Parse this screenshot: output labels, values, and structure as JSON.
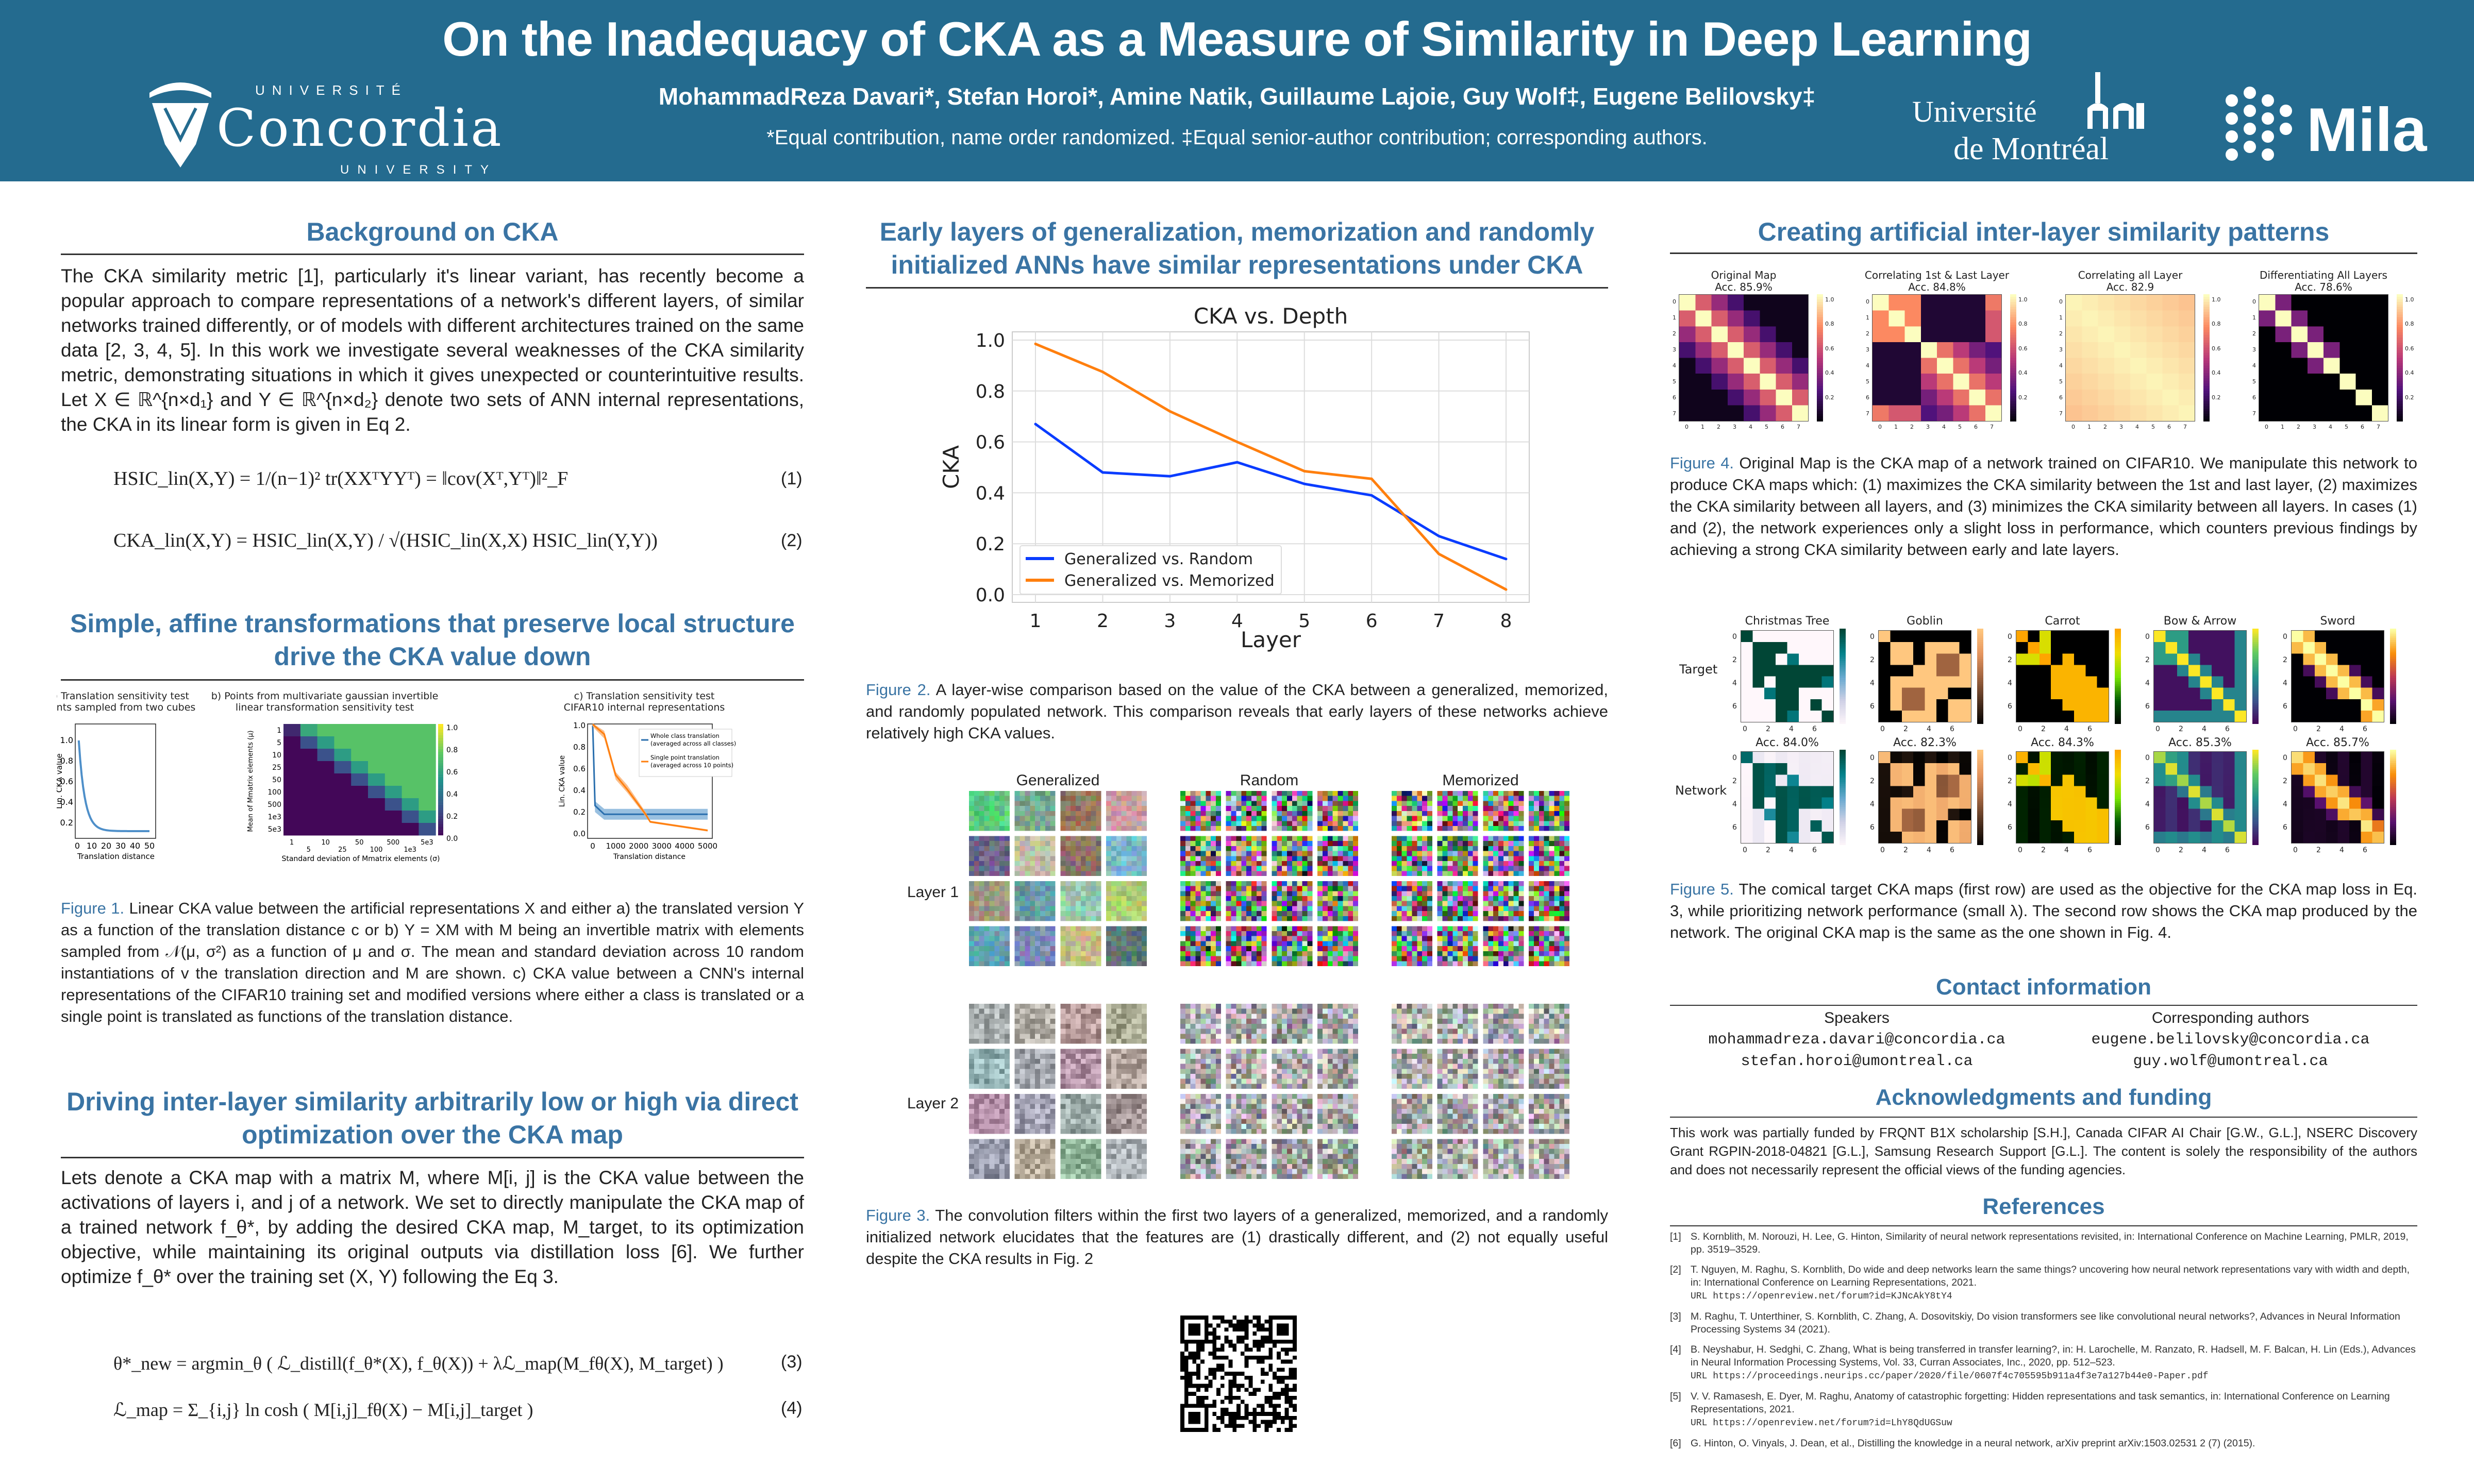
{
  "header": {
    "title": "On the Inadequacy of CKA as a Measure of Similarity in Deep Learning",
    "authors": "MohammadReza Davari*, Stefan Horoi*, Amine Natik, Guillaume Lajoie, Guy Wolf‡, Eugene Belilovsky‡",
    "affiliation_note": "*Equal contribution, name order randomized. ‡Equal senior-author contribution; corresponding authors.",
    "logos": {
      "concordia": {
        "top": "UNIVERSITÉ",
        "name": "Concordia",
        "bottom": "UNIVERSITY"
      },
      "udem": {
        "line1": "Université",
        "line2": "de Montréal"
      },
      "mila": "Mila"
    },
    "colors": {
      "banner": "#246b8f",
      "heading": "#3a74a4"
    }
  },
  "background": {
    "heading": "Background on CKA",
    "text": "The CKA similarity metric [1], particularly it's linear variant, has recently become a popular approach to compare representations of a network's different layers, of similar networks trained differently, or of models with different architectures trained on the same data [2, 3, 4, 5]. In this work we investigate several weaknesses of the CKA similarity metric, demonstrating situations in which it gives unexpected or counterintuitive results. Let X ∈ ℝ^{n×d₁} and Y ∈ ℝ^{n×d₂} denote two sets of ANN internal representations, the CKA in its linear form is given in Eq 2.",
    "eq1": "HSIC_lin(X,Y) = 1/(n−1)² tr(XXᵀYYᵀ) = ‖cov(Xᵀ,Yᵀ)‖²_F",
    "eq1_num": "(1)",
    "eq2": "CKA_lin(X,Y) = HSIC_lin(X,Y) / √(HSIC_lin(X,X) HSIC_lin(Y,Y))",
    "eq2_num": "(2)"
  },
  "affine": {
    "heading": "Simple, affine transformations that preserve local structure drive the CKA value down",
    "fig_a": {
      "title": "a) Translation sensitivity test\npoints sampled from two cubes",
      "ylabel": "Lin. CKA value",
      "xlabel": "Translation distance",
      "xticks": [
        "0",
        "10",
        "20",
        "30",
        "40",
        "50"
      ],
      "yticks": [
        "0.2",
        "0.4",
        "0.6",
        "0.8",
        "1.0"
      ]
    },
    "fig_b": {
      "title": "b) Points from multivariate gaussian invertible\nlinear transformation sensitivity test",
      "ylabel": "Mean of Mmatrix elements (μ)",
      "xlabel": "Standard deviation of Mmatrix elements (σ)",
      "ticks": [
        "1",
        "5",
        "10",
        "25",
        "50",
        "100",
        "500",
        "1e3",
        "5e3"
      ],
      "cbar": [
        "0.0",
        "0.2",
        "0.4",
        "0.6",
        "0.8",
        "1.0"
      ]
    },
    "fig_c": {
      "title": "c) Translation sensitivity test\nCIFAR10 internal representations",
      "ylabel": "Lin. CKA value",
      "xlabel": "Translation distance",
      "xticks": [
        "0",
        "1000",
        "2000",
        "3000",
        "4000",
        "5000"
      ],
      "yticks": [
        "0.0",
        "0.2",
        "0.4",
        "0.6",
        "0.8",
        "1.0"
      ],
      "legend": [
        "Whole class translation\n(averaged across all classes)",
        "Single point translation\n(averaged across 10 points)"
      ]
    },
    "caption_label": "Figure 1.",
    "caption": " Linear CKA value between the artificial representations X and either a) the translated version Y as a function of the translation distance c or b) Y = XM with M being an invertible matrix with elements sampled from 𝒩(μ, σ²) as a function of μ and σ. The mean and standard deviation across 10 random instantiations of v the translation direction and M are shown. c) CKA value between a CNN's internal representations of the CIFAR10 training set and modified versions where either a class is translated or a single point is translated as functions of the translation distance."
  },
  "driving": {
    "heading": "Driving inter-layer similarity arbitrarily low or high via direct optimization over the CKA map",
    "text": "Lets denote a CKA map with a matrix M, where M[i, j] is the CKA value between the activations of layers i, and j of a network. We set to directly manipulate the CKA map of a trained network f_θ*, by adding the desired CKA map, M_target, to its optimization objective, while maintaining its original outputs via distillation loss [6]. We further optimize f_θ* over the training set (X, Y) following the Eq 3.",
    "eq3": "θ*_new = argmin_θ ( ℒ_distill(f_θ*(X), f_θ(X)) + λℒ_map(M_fθ(X), M_target) )",
    "eq3_num": "(3)",
    "eq4": "ℒ_map = Σ_{i,j} ln cosh ( M[i,j]_fθ(X) − M[i,j]_target )",
    "eq4_num": "(4)"
  },
  "early": {
    "heading": "Early layers of generalization, memorization and randomly initialized ANNs have similar representations under CKA",
    "caption2_label": "Figure 2.",
    "caption2": " A layer-wise comparison based on the value of the CKA between a generalized, memorized, and randomly populated network. This comparison reveals that early layers of these networks achieve relatively high CKA values.",
    "filters": {
      "columns": [
        "Generalized",
        "Random",
        "Memorized"
      ],
      "rows": [
        "Layer 1",
        "Layer 2"
      ]
    },
    "caption3_label": "Figure 3.",
    "caption3": " The convolution filters within the first two layers of a generalized, memorized, and a randomly initialized network elucidates that the features are (1) drastically different, and (2) not equally useful despite the CKA results in Fig. 2"
  },
  "chart_data": {
    "type": "line",
    "title": "CKA vs. Depth",
    "xlabel": "Layer",
    "ylabel": "CKA",
    "x": [
      1,
      2,
      3,
      4,
      5,
      6,
      7,
      8
    ],
    "xticks": [
      "1",
      "2",
      "3",
      "4",
      "5",
      "6",
      "7",
      "8"
    ],
    "yticks": [
      "0.0",
      "0.2",
      "0.4",
      "0.6",
      "0.8",
      "1.0"
    ],
    "ylim": [
      -0.02,
      1.05
    ],
    "grid": true,
    "legend": "bottom-left",
    "series": [
      {
        "name": "Generalized vs. Random",
        "color": "#0a3cff",
        "values": [
          0.67,
          0.48,
          0.465,
          0.52,
          0.435,
          0.39,
          0.23,
          0.14
        ]
      },
      {
        "name": "Generalized vs. Memorized",
        "color": "#ff7f0e",
        "values": [
          0.985,
          0.875,
          0.72,
          0.6,
          0.485,
          0.455,
          0.16,
          0.02
        ]
      }
    ]
  },
  "patterns": {
    "heading": "Creating artificial inter-layer similarity patterns",
    "fig4": [
      {
        "title": "Original Map",
        "acc": "Acc. 85.9%"
      },
      {
        "title": "Correlating 1st & Last Layer",
        "acc": "Acc. 84.8%"
      },
      {
        "title": "Correlating all Layer",
        "acc": "Acc. 82.9"
      },
      {
        "title": "Differentiating All Layers",
        "acc": "Acc. 78.6%"
      }
    ],
    "fig4_cbar": [
      "0.2",
      "0.4",
      "0.6",
      "0.8",
      "1.0"
    ],
    "caption4_label": "Figure 4.",
    "caption4": " Original Map is the CKA map of a network trained on CIFAR10. We manipulate this network to produce CKA maps which: (1) maximizes the CKA similarity between the 1st and last layer, (2) maximizes the CKA similarity between all layers, and (3) minimizes the CKA similarity between all layers. In cases (1) and (2), the network experiences only a slight loss in performance, which counters previous findings by achieving a strong CKA similarity between early and late layers.",
    "fig5": {
      "row_labels": [
        "Target",
        "Network"
      ],
      "targets": [
        "Christmas Tree",
        "Goblin",
        "Carrot",
        "Bow & Arrow",
        "Sword"
      ],
      "accs": [
        "Acc. 84.0%",
        "Acc. 82.3%",
        "Acc. 84.3%",
        "Acc. 85.3%",
        "Acc. 85.7%"
      ],
      "ticks": [
        "0",
        "2",
        "4",
        "6"
      ]
    },
    "caption5_label": "Figure 5.",
    "caption5": " The comical target CKA maps (first row) are used as the objective for the CKA map loss in Eq. 3, while prioritizing network performance (small λ). The second row shows the CKA map produced by the network. The original CKA map is the same as the one shown in Fig. 4."
  },
  "contact": {
    "heading": "Contact information",
    "speakers_label": "Speakers",
    "speakers": [
      "mohammadreza.davari@concordia.ca",
      "stefan.horoi@umontreal.ca"
    ],
    "corresponding_label": "Corresponding authors",
    "corresponding": [
      "eugene.belilovsky@concordia.ca",
      "guy.wolf@umontreal.ca"
    ]
  },
  "ack": {
    "heading": "Acknowledgments and funding",
    "text": "This work was partially funded by FRQNT B1X scholarship [S.H.], Canada CIFAR AI Chair [G.W., G.L.], NSERC Discovery Grant RGPIN-2018-04821 [G.L.], Samsung Research Support [G.L.]. The content is solely the responsibility of the authors and does not necessarily represent the official views of the funding agencies."
  },
  "references": {
    "heading": "References",
    "items": [
      {
        "n": "[1]",
        "text": "S. Kornblith, M. Norouzi, H. Lee, G. Hinton, Similarity of neural network representations revisited, in: International Conference on Machine Learning, PMLR, 2019, pp. 3519–3529.",
        "url": ""
      },
      {
        "n": "[2]",
        "text": "T. Nguyen, M. Raghu, S. Kornblith, Do wide and deep networks learn the same things? uncovering how neural network representations vary with width and depth, in: International Conference on Learning Representations, 2021.",
        "url": "URL https://openreview.net/forum?id=KJNcAkY8tY4"
      },
      {
        "n": "[3]",
        "text": "M. Raghu, T. Unterthiner, S. Kornblith, C. Zhang, A. Dosovitskiy, Do vision transformers see like convolutional neural networks?, Advances in Neural Information Processing Systems 34 (2021).",
        "url": ""
      },
      {
        "n": "[4]",
        "text": "B. Neyshabur, H. Sedghi, C. Zhang, What is being transferred in transfer learning?, in: H. Larochelle, M. Ranzato, R. Hadsell, M. F. Balcan, H. Lin (Eds.), Advances in Neural Information Processing Systems, Vol. 33, Curran Associates, Inc., 2020, pp. 512–523.",
        "url": "URL https://proceedings.neurips.cc/paper/2020/file/0607f4c705595b911a4f3e7a127b44e0-Paper.pdf"
      },
      {
        "n": "[5]",
        "text": "V. V. Ramasesh, E. Dyer, M. Raghu, Anatomy of catastrophic forgetting: Hidden representations and task semantics, in: International Conference on Learning Representations, 2021.",
        "url": "URL https://openreview.net/forum?id=LhY8QdUGSuw"
      },
      {
        "n": "[6]",
        "text": "G. Hinton, O. Vinyals, J. Dean, et al., Distilling the knowledge in a neural network, arXiv preprint arXiv:1503.02531 2 (7) (2015).",
        "url": ""
      }
    ]
  }
}
